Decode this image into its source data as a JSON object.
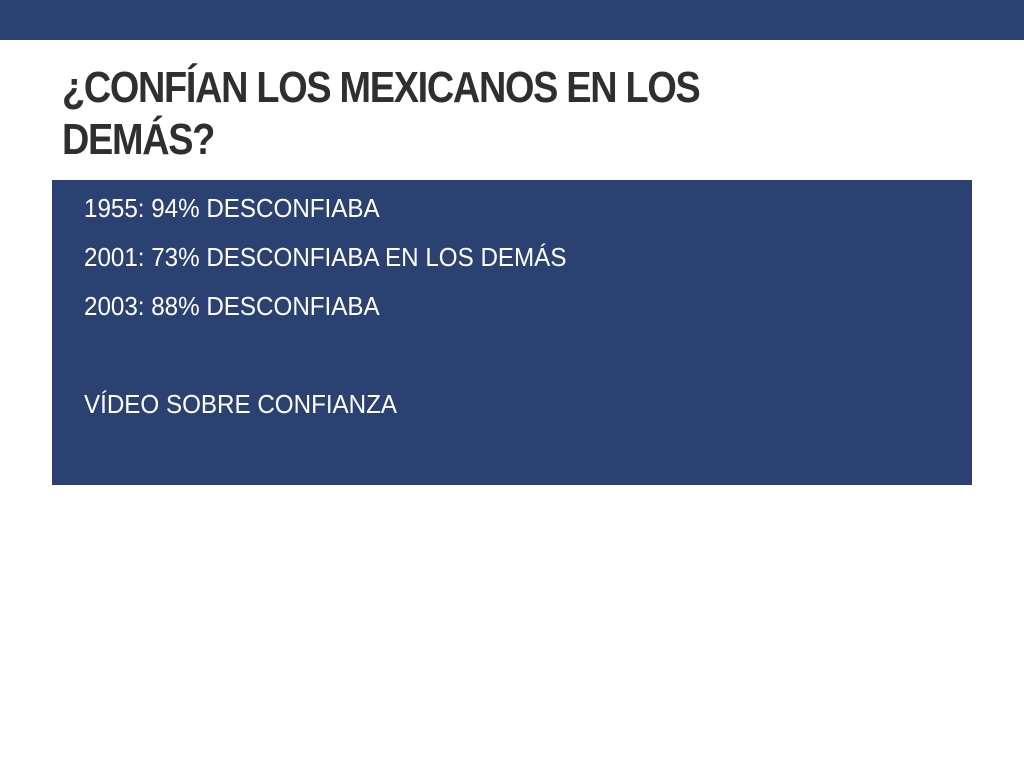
{
  "theme": {
    "accent": "#2b4171",
    "title_color": "#2f2f2f",
    "text_on_accent": "#ffffff"
  },
  "slide": {
    "title_line1": "¿CONFÍAN LOS MEXICANOS EN LOS",
    "title_line2": "DEMÁS?",
    "bullets": [
      "1955: 94% DESCONFIABA",
      "2001: 73% DESCONFIABA EN LOS DEMÁS",
      "2003: 88% DESCONFIABA",
      "VÍDEO SOBRE CONFIANZA"
    ]
  }
}
